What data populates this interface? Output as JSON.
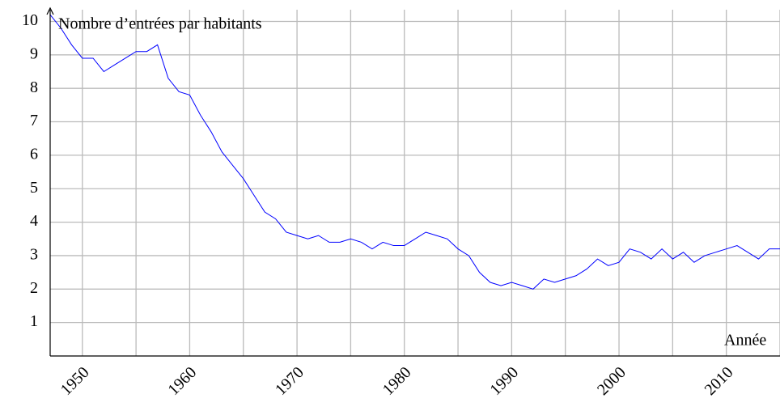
{
  "chart_data": {
    "type": "line",
    "ylabel": "Nombre d’entrées par habitants",
    "xlabel": "Année",
    "x": [
      1947,
      1948,
      1949,
      1950,
      1951,
      1952,
      1953,
      1954,
      1955,
      1956,
      1957,
      1958,
      1959,
      1960,
      1961,
      1962,
      1963,
      1964,
      1965,
      1966,
      1967,
      1968,
      1969,
      1970,
      1971,
      1972,
      1973,
      1974,
      1975,
      1976,
      1977,
      1978,
      1979,
      1980,
      1981,
      1982,
      1983,
      1984,
      1985,
      1986,
      1987,
      1988,
      1989,
      1990,
      1991,
      1992,
      1993,
      1994,
      1995,
      1996,
      1997,
      1998,
      1999,
      2000,
      2001,
      2002,
      2003,
      2004,
      2005,
      2006,
      2007,
      2008,
      2009,
      2010,
      2011,
      2012,
      2013,
      2014,
      2015
    ],
    "series": [
      {
        "color": "#0000ff",
        "values": [
          10.2,
          9.8,
          9.3,
          8.9,
          8.9,
          8.5,
          8.7,
          8.9,
          9.1,
          9.1,
          9.3,
          8.3,
          7.9,
          7.8,
          7.2,
          6.7,
          6.1,
          5.7,
          5.3,
          4.8,
          4.3,
          4.1,
          3.7,
          3.6,
          3.5,
          3.6,
          3.4,
          3.4,
          3.5,
          3.4,
          3.2,
          3.4,
          3.3,
          3.3,
          3.5,
          3.7,
          3.6,
          3.5,
          3.2,
          3.0,
          2.5,
          2.2,
          2.1,
          2.2,
          2.1,
          2.0,
          2.3,
          2.2,
          2.3,
          2.4,
          2.6,
          2.9,
          2.7,
          2.8,
          3.2,
          3.1,
          2.9,
          3.2,
          2.9,
          3.1,
          2.8,
          3.0,
          3.1,
          3.2,
          3.3,
          3.1,
          2.9,
          3.2,
          3.2
        ]
      }
    ],
    "xlim": [
      1947,
      2015
    ],
    "ylim": [
      0,
      10.35
    ],
    "xticks": [
      1950,
      1960,
      1970,
      1980,
      1990,
      2000,
      2010
    ],
    "yticks": [
      1,
      2,
      3,
      4,
      5,
      6,
      7,
      8,
      9,
      10
    ],
    "xgrid": [
      1950,
      1955,
      1960,
      1965,
      1970,
      1975,
      1980,
      1985,
      1990,
      1995,
      2000,
      2005,
      2010,
      2015
    ],
    "grid": true
  }
}
